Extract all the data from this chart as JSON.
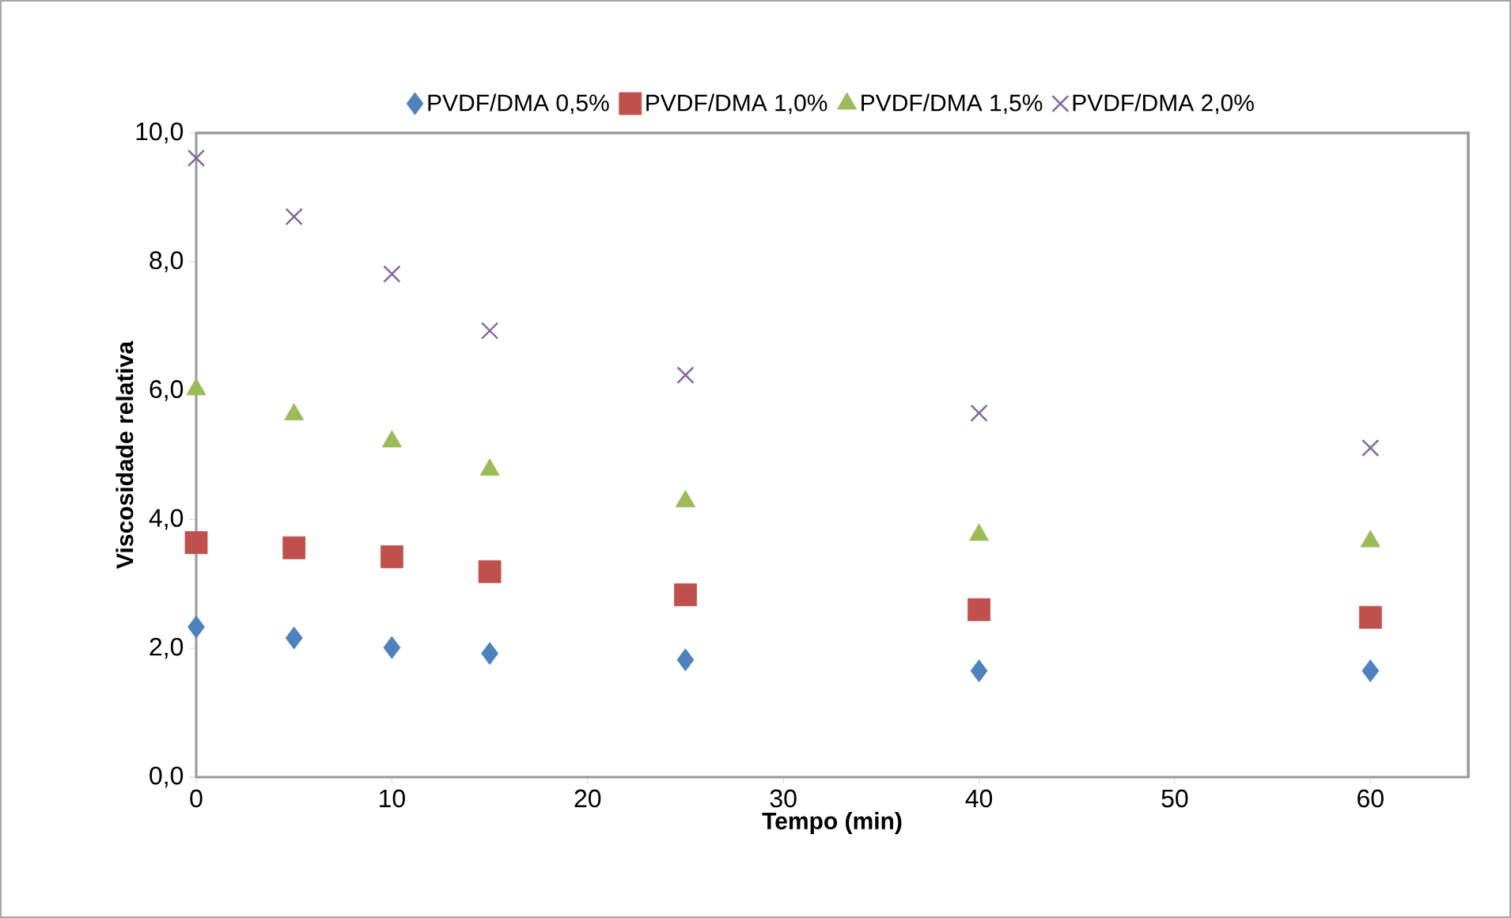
{
  "chart_data": {
    "type": "scatter",
    "xlabel": "Tempo (min)",
    "ylabel": "Viscosidade relativa",
    "x": [
      0,
      5,
      10,
      15,
      25,
      40,
      60
    ],
    "series": [
      {
        "name": "PVDF/DMA 0,5%",
        "color": "#4f81bd",
        "marker": "diamond",
        "values": [
          2.33,
          2.16,
          2.01,
          1.92,
          1.82,
          1.65,
          1.65
        ]
      },
      {
        "name": "PVDF/DMA 1,0%",
        "color": "#c0504d",
        "marker": "square",
        "values": [
          3.64,
          3.56,
          3.42,
          3.19,
          2.83,
          2.6,
          2.48
        ]
      },
      {
        "name": "PVDF/DMA 1,5%",
        "color": "#9bbb59",
        "marker": "triangle",
        "values": [
          6.02,
          5.63,
          5.21,
          4.77,
          4.28,
          3.76,
          3.66
        ]
      },
      {
        "name": "PVDF/DMA 2,0%",
        "color": "#8064a2",
        "marker": "cross",
        "values": [
          9.61,
          8.7,
          7.81,
          6.93,
          6.24,
          5.65,
          5.11
        ]
      }
    ],
    "xlim": [
      0,
      65
    ],
    "ylim": [
      0,
      10
    ],
    "xticks": [
      0,
      10,
      20,
      30,
      40,
      50,
      60
    ],
    "yticks": [
      {
        "value": 0,
        "label": "0,0"
      },
      {
        "value": 2,
        "label": "2,0"
      },
      {
        "value": 4,
        "label": "4,0"
      },
      {
        "value": 6,
        "label": "6,0"
      },
      {
        "value": 8,
        "label": "8,0"
      },
      {
        "value": 10,
        "label": "10,0"
      }
    ],
    "grid": false,
    "legend": "top"
  }
}
